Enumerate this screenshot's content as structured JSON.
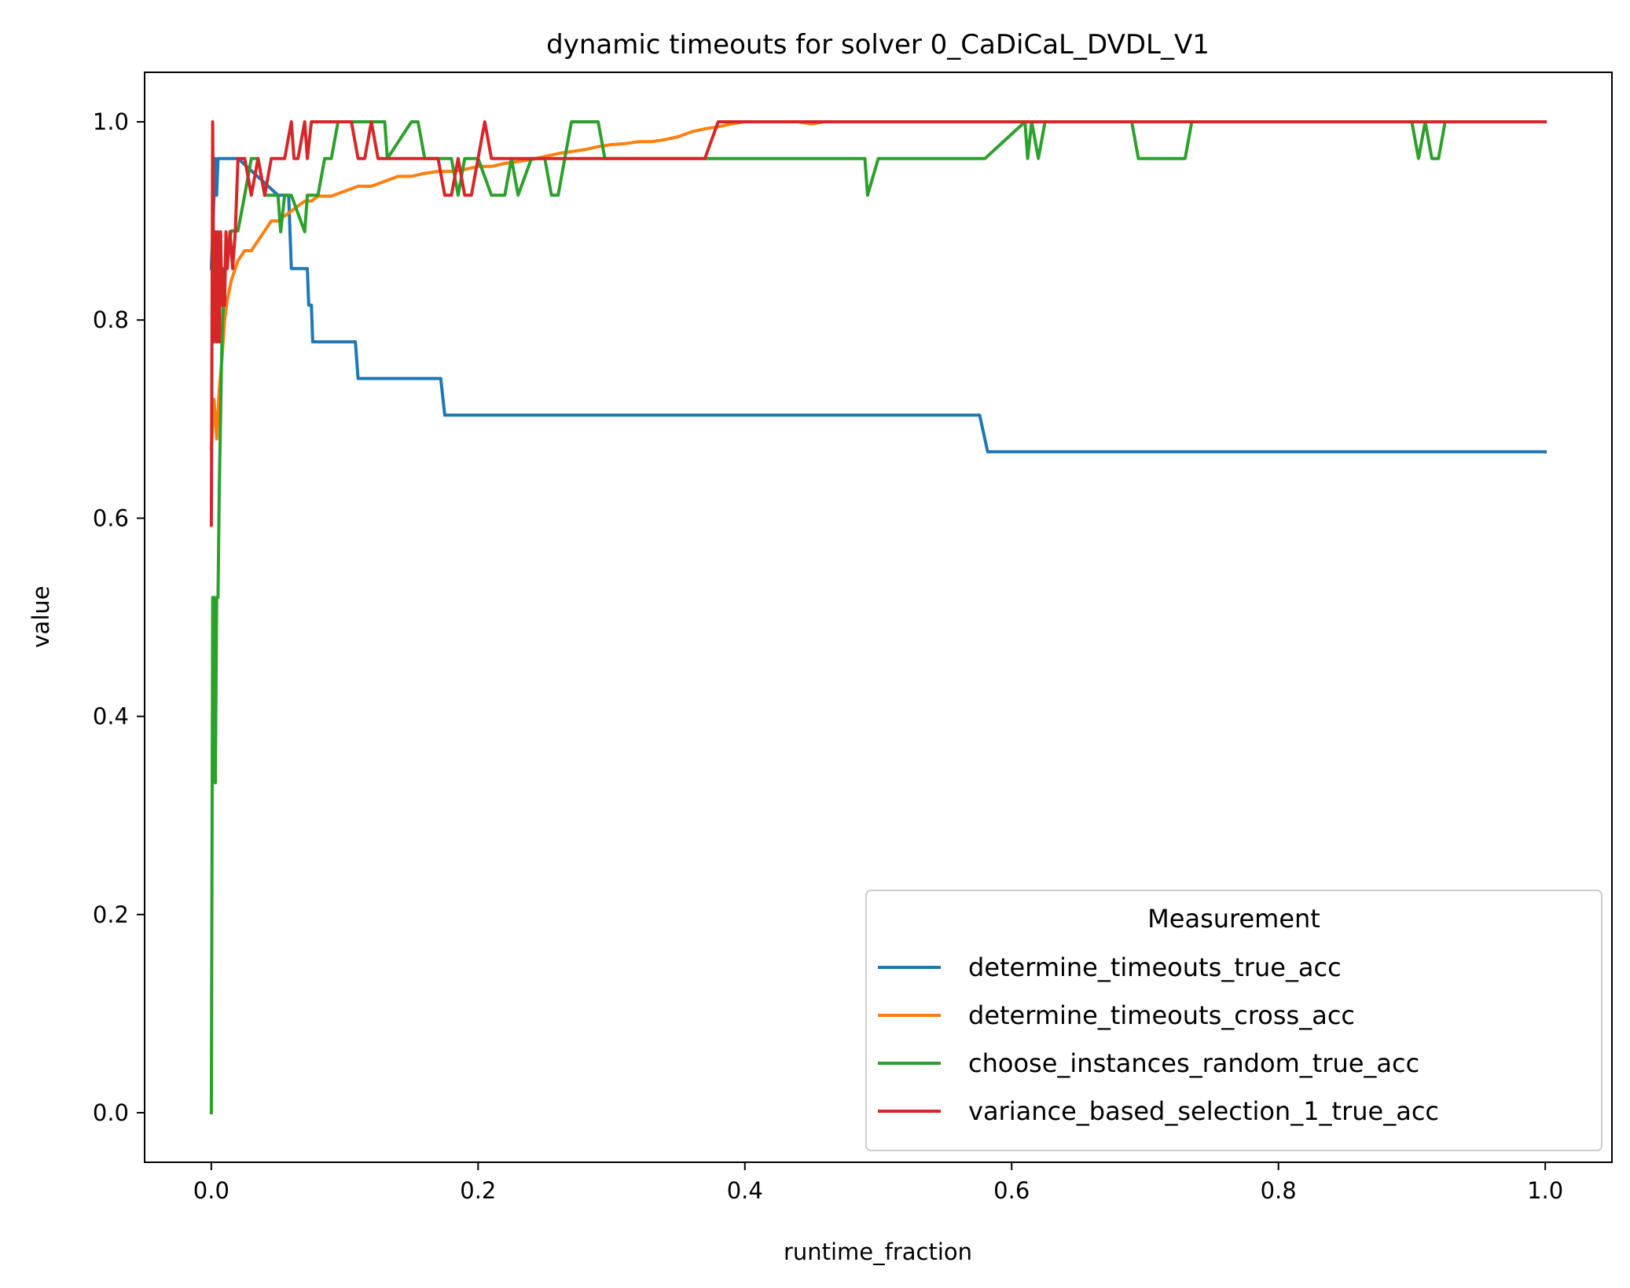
{
  "chart_data": {
    "type": "line",
    "title": "dynamic timeouts for solver 0_CaDiCaL_DVDL_V1",
    "xlabel": "runtime_fraction",
    "ylabel": "value",
    "xlim": [
      -0.05,
      1.05
    ],
    "ylim": [
      -0.05,
      1.05
    ],
    "xticks": [
      0.0,
      0.2,
      0.4,
      0.6,
      0.8,
      1.0
    ],
    "xtick_labels": [
      "0.0",
      "0.2",
      "0.4",
      "0.6",
      "0.8",
      "1.0"
    ],
    "yticks": [
      0.0,
      0.2,
      0.4,
      0.6,
      0.8,
      1.0
    ],
    "ytick_labels": [
      "0.0",
      "0.2",
      "0.4",
      "0.6",
      "0.8",
      "1.0"
    ],
    "grid": false,
    "legend": {
      "title": "Measurement",
      "placement": "lower-right"
    },
    "series": [
      {
        "name": "determine_timeouts_true_acc",
        "color": "#1f77b4",
        "x": [
          0,
          0.002,
          0.003,
          0.004,
          0.005,
          0.006,
          0.02,
          0.05,
          0.058,
          0.06,
          0.072,
          0.073,
          0.075,
          0.076,
          0.108,
          0.11,
          0.172,
          0.175,
          0.576,
          0.582,
          1.0
        ],
        "y": [
          0.852,
          0.926,
          0.963,
          0.926,
          0.963,
          0.963,
          0.963,
          0.926,
          0.926,
          0.852,
          0.852,
          0.815,
          0.815,
          0.778,
          0.778,
          0.741,
          0.741,
          0.704,
          0.704,
          0.667,
          0.667
        ]
      },
      {
        "name": "determine_timeouts_cross_acc",
        "color": "#ff7f0e",
        "x": [
          0,
          0.002,
          0.004,
          0.006,
          0.008,
          0.01,
          0.012,
          0.015,
          0.02,
          0.025,
          0.03,
          0.035,
          0.04,
          0.045,
          0.05,
          0.055,
          0.06,
          0.065,
          0.07,
          0.075,
          0.08,
          0.09,
          0.1,
          0.11,
          0.12,
          0.13,
          0.14,
          0.15,
          0.16,
          0.17,
          0.18,
          0.19,
          0.2,
          0.21,
          0.22,
          0.23,
          0.24,
          0.25,
          0.26,
          0.27,
          0.28,
          0.29,
          0.3,
          0.31,
          0.32,
          0.33,
          0.34,
          0.35,
          0.36,
          0.37,
          0.38,
          0.39,
          0.4,
          0.42,
          0.44,
          0.45,
          0.46,
          0.5,
          0.6,
          1.0
        ],
        "y": [
          0.67,
          0.72,
          0.68,
          0.73,
          0.76,
          0.8,
          0.82,
          0.84,
          0.86,
          0.87,
          0.87,
          0.88,
          0.89,
          0.9,
          0.9,
          0.905,
          0.91,
          0.915,
          0.92,
          0.92,
          0.925,
          0.925,
          0.93,
          0.935,
          0.935,
          0.94,
          0.945,
          0.945,
          0.948,
          0.95,
          0.95,
          0.952,
          0.955,
          0.955,
          0.958,
          0.96,
          0.962,
          0.965,
          0.968,
          0.97,
          0.972,
          0.975,
          0.977,
          0.978,
          0.98,
          0.98,
          0.982,
          0.985,
          0.99,
          0.993,
          0.995,
          0.998,
          1.0,
          1.0,
          1.0,
          0.998,
          1.0,
          1.0,
          1.0,
          1.0
        ]
      },
      {
        "name": "choose_instances_random_true_acc",
        "color": "#2ca02c",
        "x": [
          0,
          0.001,
          0.002,
          0.003,
          0.004,
          0.005,
          0.006,
          0.008,
          0.01,
          0.015,
          0.02,
          0.025,
          0.03,
          0.035,
          0.04,
          0.05,
          0.052,
          0.055,
          0.06,
          0.07,
          0.072,
          0.075,
          0.08,
          0.085,
          0.09,
          0.095,
          0.1,
          0.13,
          0.132,
          0.15,
          0.155,
          0.16,
          0.18,
          0.185,
          0.19,
          0.2,
          0.21,
          0.22,
          0.225,
          0.23,
          0.24,
          0.25,
          0.255,
          0.26,
          0.265,
          0.27,
          0.29,
          0.295,
          0.3,
          0.49,
          0.492,
          0.5,
          0.58,
          0.61,
          0.612,
          0.615,
          0.62,
          0.625,
          0.69,
          0.695,
          0.73,
          0.735,
          0.9,
          0.905,
          0.91,
          0.915,
          0.92,
          0.925,
          1.0
        ],
        "y": [
          0.0,
          0.52,
          0.52,
          0.333,
          0.52,
          0.52,
          0.63,
          0.78,
          0.85,
          0.89,
          0.89,
          0.926,
          0.963,
          0.963,
          0.926,
          0.926,
          0.889,
          0.926,
          0.926,
          0.889,
          0.926,
          0.926,
          0.926,
          0.963,
          0.963,
          1.0,
          1.0,
          1.0,
          0.963,
          1.0,
          1.0,
          0.963,
          0.963,
          0.926,
          0.963,
          0.963,
          0.926,
          0.926,
          0.963,
          0.926,
          0.963,
          0.963,
          0.926,
          0.926,
          0.963,
          1.0,
          1.0,
          0.963,
          0.963,
          0.963,
          0.926,
          0.963,
          0.963,
          1.0,
          0.963,
          1.0,
          0.963,
          1.0,
          1.0,
          0.963,
          0.963,
          1.0,
          1.0,
          0.963,
          1.0,
          0.963,
          0.963,
          1.0,
          1.0
        ]
      },
      {
        "name": "variance_based_selection_1_true_acc",
        "color": "#d62728",
        "x": [
          0,
          0.001,
          0.002,
          0.003,
          0.004,
          0.005,
          0.006,
          0.007,
          0.008,
          0.009,
          0.01,
          0.011,
          0.012,
          0.014,
          0.016,
          0.018,
          0.02,
          0.025,
          0.03,
          0.035,
          0.04,
          0.045,
          0.05,
          0.055,
          0.06,
          0.062,
          0.065,
          0.07,
          0.072,
          0.075,
          0.08,
          0.105,
          0.11,
          0.115,
          0.12,
          0.125,
          0.13,
          0.135,
          0.17,
          0.175,
          0.18,
          0.185,
          0.19,
          0.195,
          0.2,
          0.205,
          0.21,
          0.22,
          0.3,
          0.37,
          0.38,
          0.4,
          0.6,
          1.0
        ],
        "y": [
          0.593,
          1.0,
          0.778,
          0.889,
          0.778,
          0.889,
          0.778,
          0.889,
          0.815,
          0.852,
          0.815,
          0.889,
          0.852,
          0.889,
          0.852,
          0.889,
          0.963,
          0.963,
          0.926,
          0.963,
          0.926,
          0.963,
          0.963,
          0.963,
          1.0,
          0.963,
          0.963,
          1.0,
          0.963,
          1.0,
          1.0,
          1.0,
          0.963,
          0.963,
          1.0,
          0.963,
          0.963,
          0.963,
          0.963,
          0.926,
          0.926,
          0.963,
          0.926,
          0.926,
          0.963,
          1.0,
          0.963,
          0.963,
          0.963,
          0.963,
          1.0,
          1.0,
          1.0,
          1.0
        ]
      }
    ]
  }
}
